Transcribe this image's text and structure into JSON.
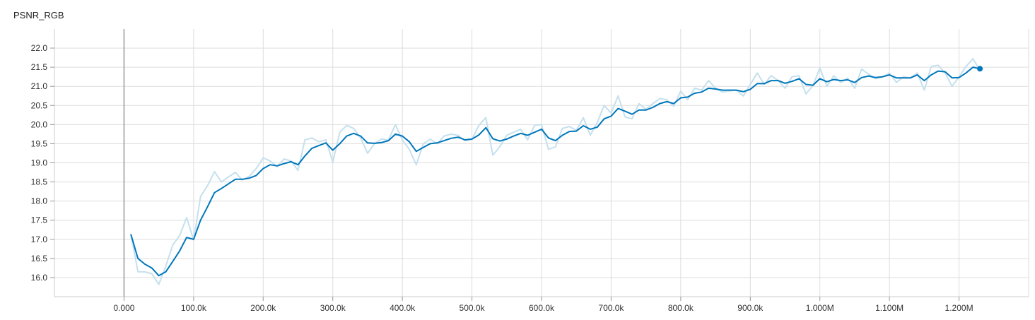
{
  "chart_data": {
    "type": "line",
    "title": "PSNR_RGB",
    "xlabel": "",
    "ylabel": "",
    "xlim": [
      -100000,
      1300000
    ],
    "ylim": [
      15.5,
      22.5
    ],
    "x_ticks": [
      0,
      100000,
      200000,
      300000,
      400000,
      500000,
      600000,
      700000,
      800000,
      900000,
      1000000,
      1100000,
      1200000
    ],
    "x_tick_labels": [
      "0.000",
      "100.0k",
      "200.0k",
      "300.0k",
      "400.0k",
      "500.0k",
      "600.0k",
      "700.0k",
      "800.0k",
      "900.0k",
      "1.000M",
      "1.100M",
      "1.200M"
    ],
    "y_ticks": [
      16.0,
      16.5,
      17.0,
      17.5,
      18.0,
      18.5,
      19.0,
      19.5,
      20.0,
      20.5,
      21.0,
      21.5,
      22.0
    ],
    "y_tick_labels": [
      "16.0",
      "16.5",
      "17.0",
      "17.5",
      "18.0",
      "18.5",
      "19.0",
      "19.5",
      "20.0",
      "20.5",
      "21.0",
      "21.5",
      "22.0"
    ],
    "grid": true,
    "legend": "none",
    "colors": {
      "smoothed": "#0077bb",
      "raw": "#c5e0ee",
      "grid": "#dddddd",
      "zero_line": "#999999"
    },
    "x": [
      10000,
      20000,
      30000,
      40000,
      50000,
      60000,
      70000,
      80000,
      90000,
      100000,
      110000,
      120000,
      130000,
      140000,
      150000,
      160000,
      170000,
      180000,
      190000,
      200000,
      210000,
      220000,
      230000,
      240000,
      250000,
      260000,
      270000,
      280000,
      290000,
      300000,
      310000,
      320000,
      330000,
      340000,
      350000,
      360000,
      370000,
      380000,
      390000,
      400000,
      410000,
      420000,
      430000,
      440000,
      450000,
      460000,
      470000,
      480000,
      490000,
      500000,
      510000,
      520000,
      530000,
      540000,
      550000,
      560000,
      570000,
      580000,
      590000,
      600000,
      610000,
      620000,
      630000,
      640000,
      650000,
      660000,
      670000,
      680000,
      690000,
      700000,
      710000,
      720000,
      730000,
      740000,
      750000,
      760000,
      770000,
      780000,
      790000,
      800000,
      810000,
      820000,
      830000,
      840000,
      850000,
      860000,
      870000,
      880000,
      890000,
      900000,
      910000,
      920000,
      930000,
      940000,
      950000,
      960000,
      970000,
      980000,
      990000,
      1000000,
      1010000,
      1020000,
      1030000,
      1040000,
      1050000,
      1060000,
      1070000,
      1080000,
      1090000,
      1100000,
      1110000,
      1120000,
      1130000,
      1140000,
      1150000,
      1160000,
      1170000,
      1180000,
      1190000,
      1200000,
      1210000,
      1220000,
      1230000
    ],
    "series": [
      {
        "values": [
          17.12,
          16.15,
          16.15,
          16.1,
          15.82,
          16.3,
          16.85,
          17.1,
          17.57,
          16.98,
          18.12,
          18.4,
          18.77,
          18.5,
          18.63,
          18.75,
          18.55,
          18.65,
          18.85,
          19.13,
          19.05,
          18.9,
          19.1,
          19.05,
          18.8,
          19.6,
          19.65,
          19.55,
          19.6,
          19.02,
          19.8,
          19.98,
          19.9,
          19.65,
          19.25,
          19.5,
          19.62,
          19.6,
          20.0,
          19.6,
          19.35,
          18.95,
          19.5,
          19.62,
          19.5,
          19.7,
          19.75,
          19.72,
          19.58,
          19.62,
          19.98,
          20.18,
          19.2,
          19.42,
          19.72,
          19.8,
          19.88,
          19.6,
          19.98,
          20.0,
          19.35,
          19.42,
          19.9,
          19.95,
          19.85,
          20.18,
          19.72,
          20.05,
          20.5,
          20.3,
          20.75,
          20.2,
          20.15,
          20.55,
          20.4,
          20.55,
          20.68,
          20.65,
          20.48,
          20.88,
          20.65,
          20.95,
          20.9,
          21.15,
          20.95,
          20.85,
          20.88,
          20.9,
          20.75,
          21.05,
          21.35,
          21.05,
          21.28,
          21.15,
          20.95,
          21.25,
          21.28,
          20.8,
          21.02,
          21.48,
          21.0,
          21.28,
          21.1,
          21.22,
          20.95,
          21.45,
          21.32,
          21.2,
          21.25,
          21.35,
          21.1,
          21.25,
          21.22,
          21.35,
          20.9,
          21.52,
          21.55,
          21.35,
          21.0,
          21.25,
          21.52,
          21.72,
          21.42
        ]
      },
      {
        "values": [
          17.12,
          16.5,
          16.35,
          16.25,
          16.05,
          16.15,
          16.42,
          16.7,
          17.05,
          17.0,
          17.5,
          17.85,
          18.22,
          18.33,
          18.45,
          18.57,
          18.57,
          18.6,
          18.67,
          18.85,
          18.95,
          18.92,
          18.98,
          19.03,
          18.95,
          19.18,
          19.38,
          19.45,
          19.52,
          19.33,
          19.5,
          19.7,
          19.77,
          19.7,
          19.52,
          19.51,
          19.53,
          19.58,
          19.75,
          19.7,
          19.55,
          19.3,
          19.4,
          19.5,
          19.52,
          19.58,
          19.64,
          19.67,
          19.6,
          19.62,
          19.73,
          19.92,
          19.63,
          19.57,
          19.62,
          19.7,
          19.77,
          19.72,
          19.8,
          19.88,
          19.65,
          19.58,
          19.72,
          19.82,
          19.83,
          19.97,
          19.88,
          19.93,
          20.15,
          20.22,
          20.42,
          20.35,
          20.27,
          20.38,
          20.38,
          20.45,
          20.55,
          20.6,
          20.55,
          20.7,
          20.72,
          20.82,
          20.85,
          20.95,
          20.93,
          20.9,
          20.9,
          20.9,
          20.86,
          20.92,
          21.07,
          21.07,
          21.15,
          21.15,
          21.08,
          21.13,
          21.2,
          21.05,
          21.03,
          21.2,
          21.12,
          21.18,
          21.15,
          21.17,
          21.1,
          21.23,
          21.27,
          21.23,
          21.25,
          21.3,
          21.22,
          21.22,
          21.22,
          21.3,
          21.15,
          21.3,
          21.4,
          21.38,
          21.22,
          21.23,
          21.35,
          21.5,
          21.46
        ]
      }
    ]
  }
}
